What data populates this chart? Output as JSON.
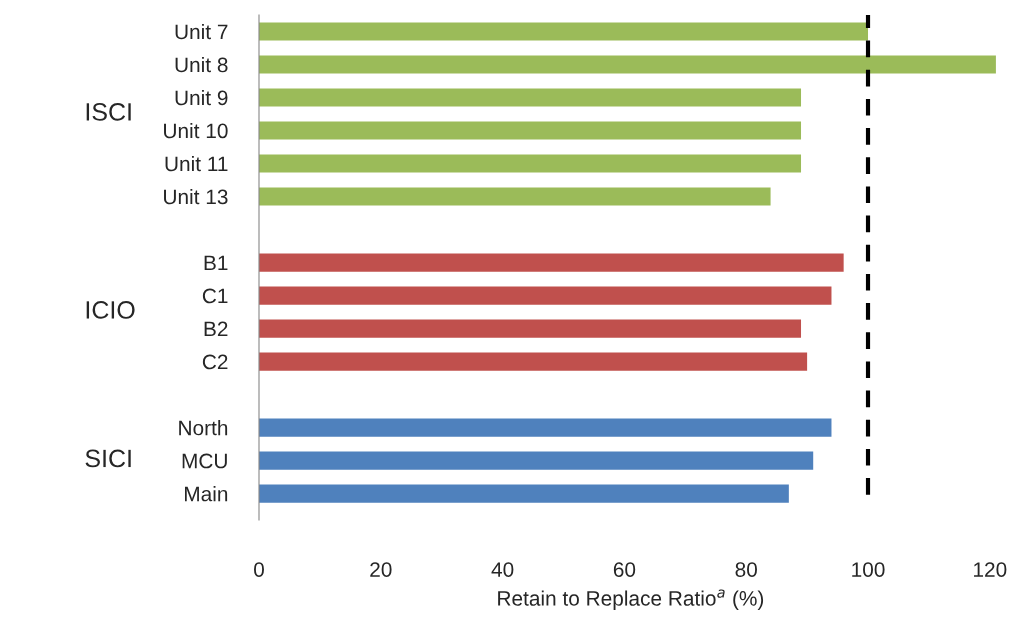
{
  "chart_data": {
    "type": "bar",
    "orientation": "horizontal",
    "categories": [
      "Unit 7",
      "Unit 8",
      "Unit 9",
      "Unit 10",
      "Unit 11",
      "Unit 13",
      null,
      "B1",
      "C1",
      "B2",
      "C2",
      null,
      "North",
      "MCU",
      "Main"
    ],
    "values": [
      100,
      121,
      89,
      89,
      89,
      84,
      null,
      96,
      94,
      89,
      90,
      null,
      94,
      91,
      87
    ],
    "colors": [
      "#9bbb59",
      "#9bbb59",
      "#9bbb59",
      "#9bbb59",
      "#9bbb59",
      "#9bbb59",
      null,
      "#c0504d",
      "#c0504d",
      "#c0504d",
      "#c0504d",
      null,
      "#4f81bd",
      "#4f81bd",
      "#4f81bd"
    ],
    "xlabel": "Retain to Replace Ratio$^{a}$ (%)",
    "annotations": [
      "ISCI",
      "ICIO",
      "SICI"
    ],
    "xlim": [
      0,
      122
    ],
    "xticks": [
      0,
      20,
      40,
      60,
      80,
      100,
      120
    ],
    "ref_lines": [
      {
        "axis": "x",
        "value": 100,
        "color": "#000000",
        "line_style": "dashed"
      }
    ],
    "grid": false,
    "legend": false
  }
}
